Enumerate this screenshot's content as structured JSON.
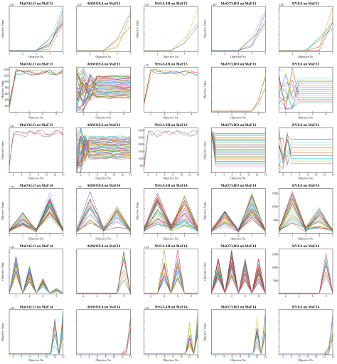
{
  "figure": {
    "colors": [
      "#0072BD",
      "#D95319",
      "#EDB120",
      "#7E2F8E",
      "#77AC30",
      "#4DBEEE",
      "#A2142F",
      "#1f77b4",
      "#ff7f0e",
      "#2ca02c",
      "#d62728",
      "#9467bd",
      "#8c564b",
      "#e377c2",
      "#7f7f7f",
      "#bcbd22",
      "#17becf"
    ]
  },
  "chart_data": [
    {
      "type": "line",
      "title": "MaOALO on MaF13",
      "xlabel": "Objective No.",
      "ylabel": "Objective Value",
      "multiplier": "×10⁷",
      "xticks": [
        "1",
        "2",
        "3",
        "4",
        "5"
      ],
      "yticks": [
        "",
        "",
        "",
        "",
        ""
      ],
      "xlim": [
        1,
        5
      ],
      "ylim": [
        0,
        1
      ],
      "pattern": "spike",
      "lines": 8,
      "seed": 11
    },
    {
      "type": "line",
      "title": "ARMOEA on MaF13",
      "xlabel": "Objective No.",
      "ylabel": "",
      "multiplier": "×10⁷",
      "xticks": [
        "1",
        "2",
        "3",
        "4",
        "5"
      ],
      "yticks": [
        "",
        "",
        "",
        "",
        ""
      ],
      "xlim": [
        1,
        5
      ],
      "ylim": [
        0,
        1
      ],
      "pattern": "spike",
      "lines": 4,
      "seed": 12
    },
    {
      "type": "line",
      "title": "NSGA-III on MaF13",
      "xlabel": "Objective No.",
      "ylabel": "Objective Value",
      "multiplier": "×10⁵",
      "xticks": [
        "1",
        "2",
        "3",
        "4",
        "5"
      ],
      "yticks": [
        "",
        "",
        "",
        "",
        ""
      ],
      "xlim": [
        1,
        5
      ],
      "ylim": [
        0,
        1
      ],
      "pattern": "spike",
      "lines": 3,
      "seed": 13
    },
    {
      "type": "line",
      "title": "MaOTLBO on MaF13",
      "xlabel": "Objective No.",
      "ylabel": "Objective Value",
      "multiplier": "×10⁴",
      "xticks": [
        "1",
        "2",
        "3",
        "4",
        "5"
      ],
      "yticks": [
        "",
        "",
        "",
        "",
        ""
      ],
      "xlim": [
        1,
        5
      ],
      "ylim": [
        0,
        1
      ],
      "pattern": "spike",
      "lines": 5,
      "seed": 14
    },
    {
      "type": "line",
      "title": "RVEA on MaF13",
      "xlabel": "Objective No.",
      "ylabel": "",
      "multiplier": "×10⁸",
      "xticks": [
        "1",
        "2",
        "3",
        "4",
        "5"
      ],
      "yticks": [
        "",
        "",
        "",
        "",
        ""
      ],
      "xlim": [
        1,
        5
      ],
      "ylim": [
        0,
        1
      ],
      "pattern": "spike",
      "lines": 6,
      "seed": 15
    },
    {
      "type": "line",
      "title": "MaOALO on MaF13",
      "xlabel": "Objective No.",
      "ylabel": "Objective Value",
      "multiplier": "",
      "xticks": [
        "2",
        "4",
        "6",
        "8"
      ],
      "yticks": [
        "200",
        "400",
        "600",
        "800",
        "1000",
        "1200",
        "1400"
      ],
      "xlim": [
        1,
        9
      ],
      "ylim": [
        0,
        1
      ],
      "pattern": "plateau",
      "lines": 6,
      "seed": 21
    },
    {
      "type": "line",
      "title": "ARMOEA on MaF13",
      "xlabel": "Objective No.",
      "ylabel": "",
      "multiplier": "",
      "xticks": [
        "2",
        "4",
        "6",
        "8"
      ],
      "yticks": [
        "",
        "",
        "",
        "",
        ""
      ],
      "xlim": [
        1,
        9
      ],
      "ylim": [
        0,
        1
      ],
      "pattern": "band",
      "lines": 40,
      "seed": 22
    },
    {
      "type": "line",
      "title": "NSGA-III on MaF13",
      "xlabel": "Objective No.",
      "ylabel": "",
      "multiplier": "×10⁵",
      "xticks": [
        "2",
        "4",
        "6",
        "8"
      ],
      "yticks": [
        "",
        "",
        "",
        "",
        ""
      ],
      "xlim": [
        1,
        9
      ],
      "ylim": [
        0,
        1
      ],
      "pattern": "plateau",
      "lines": 4,
      "seed": 23
    },
    {
      "type": "line",
      "title": "MaOTLBO on MaF13",
      "xlabel": "Objective No.",
      "ylabel": "Objective Value",
      "multiplier": "",
      "xticks": [
        "2",
        "4",
        "6",
        "8"
      ],
      "yticks": [
        "",
        "",
        "",
        "",
        ""
      ],
      "xlim": [
        1,
        9
      ],
      "ylim": [
        0,
        1
      ],
      "pattern": "spike",
      "lines": 3,
      "seed": 24
    },
    {
      "type": "line",
      "title": "RVEA on MaF13",
      "xlabel": "Objective No.",
      "ylabel": "",
      "multiplier": "",
      "xticks": [
        "2",
        "4",
        "6",
        "8"
      ],
      "yticks": [
        "",
        "",
        "",
        "",
        ""
      ],
      "xlim": [
        1,
        9
      ],
      "ylim": [
        0,
        1
      ],
      "pattern": "cross",
      "lines": 14,
      "seed": 25
    },
    {
      "type": "line",
      "title": "MaOALO on MaF13",
      "xlabel": "Objective No.",
      "ylabel": "Objective Value",
      "multiplier": "×10⁷",
      "xticks": [
        "2",
        "4",
        "6",
        "8",
        "10",
        "12",
        "14"
      ],
      "yticks": [
        "",
        "",
        "",
        "",
        ""
      ],
      "xlim": [
        1,
        14
      ],
      "ylim": [
        0,
        1
      ],
      "pattern": "plateau",
      "lines": 3,
      "seed": 31
    },
    {
      "type": "line",
      "title": "ARMOEA on MaF13",
      "xlabel": "Objective No.",
      "ylabel": "",
      "multiplier": "",
      "xticks": [
        "2",
        "4",
        "6",
        "8",
        "10",
        "12",
        "14"
      ],
      "yticks": [
        "",
        "",
        "",
        "",
        ""
      ],
      "xlim": [
        1,
        14
      ],
      "ylim": [
        0,
        1
      ],
      "pattern": "band",
      "lines": 40,
      "seed": 32
    },
    {
      "type": "line",
      "title": "NSGA-III on MaF13",
      "xlabel": "Objective No.",
      "ylabel": "",
      "multiplier": "",
      "xticks": [
        "2",
        "4",
        "6",
        "8",
        "10",
        "12",
        "14"
      ],
      "yticks": [
        "500",
        "1000",
        "1500",
        "2000",
        "2500",
        "3000"
      ],
      "xlim": [
        1,
        14
      ],
      "ylim": [
        0,
        1
      ],
      "pattern": "plateau",
      "lines": 3,
      "seed": 33
    },
    {
      "type": "line",
      "title": "MaOTLBO on MaF13",
      "xlabel": "Objective No.",
      "ylabel": "Objective Value",
      "multiplier": "",
      "xticks": [
        "2",
        "4",
        "6",
        "8",
        "10",
        "12",
        "14"
      ],
      "yticks": [
        "",
        "",
        "",
        "",
        ""
      ],
      "xlim": [
        1,
        14
      ],
      "ylim": [
        0,
        1
      ],
      "pattern": "flat",
      "lines": 28,
      "seed": 34
    },
    {
      "type": "line",
      "title": "RVEA on MaF13",
      "xlabel": "Objective No.",
      "ylabel": "",
      "multiplier": "",
      "xticks": [
        "2",
        "4",
        "6",
        "8",
        "10",
        "12",
        "14"
      ],
      "yticks": [
        "",
        "",
        "",
        "",
        ""
      ],
      "xlim": [
        1,
        14
      ],
      "ylim": [
        0,
        1
      ],
      "pattern": "cross",
      "lines": 10,
      "seed": 35
    },
    {
      "type": "line",
      "title": "MaOALO on MaF14",
      "xlabel": "Objective No.",
      "ylabel": "Objective Value",
      "multiplier": "×10⁴",
      "xticks": [
        "1",
        "2",
        "3",
        "4",
        "5"
      ],
      "yticks": [
        "",
        "",
        "",
        "",
        ""
      ],
      "xlim": [
        1,
        5
      ],
      "ylim": [
        0,
        1
      ],
      "pattern": "zigzag5",
      "lines": 30,
      "seed": 41
    },
    {
      "type": "line",
      "title": "ARMOEA on MaF14",
      "xlabel": "Objective No.",
      "ylabel": "",
      "multiplier": "×10⁵",
      "xticks": [
        "1",
        "2",
        "3",
        "4",
        "5"
      ],
      "yticks": [
        "",
        "",
        "",
        "",
        ""
      ],
      "xlim": [
        1,
        5
      ],
      "ylim": [
        0,
        1
      ],
      "pattern": "zigzag5b",
      "lines": 20,
      "seed": 42
    },
    {
      "type": "line",
      "title": "NSGA-III on MaF14",
      "xlabel": "Objective No.",
      "ylabel": "Objective Value",
      "multiplier": "",
      "xticks": [
        "1",
        "2",
        "3",
        "4",
        "5"
      ],
      "yticks": [
        "",
        "",
        "",
        "",
        ""
      ],
      "xlim": [
        1,
        5
      ],
      "ylim": [
        0,
        1
      ],
      "pattern": "zigzag5c",
      "lines": 30,
      "seed": 43
    },
    {
      "type": "line",
      "title": "MaOTLBO on MaF14",
      "xlabel": "Objective No.",
      "ylabel": "Objective Value",
      "multiplier": "",
      "xticks": [
        "1",
        "2",
        "3",
        "4",
        "5"
      ],
      "yticks": [
        "",
        "",
        "",
        "",
        ""
      ],
      "xlim": [
        1,
        5
      ],
      "ylim": [
        0,
        1
      ],
      "pattern": "zigzag5",
      "lines": 30,
      "seed": 44
    },
    {
      "type": "line",
      "title": "RVEA on MaF14",
      "xlabel": "Objective No.",
      "ylabel": "",
      "multiplier": "",
      "xticks": [
        "1",
        "2",
        "3",
        "4",
        "5"
      ],
      "yticks": [
        "5000",
        "10000",
        "15000"
      ],
      "xlim": [
        1,
        5
      ],
      "ylim": [
        0,
        1
      ],
      "pattern": "zigzag5b",
      "lines": 25,
      "seed": 45
    },
    {
      "type": "line",
      "title": "MaOALO on MaF14",
      "xlabel": "",
      "ylabel": "Objective Value",
      "multiplier": "×10⁴",
      "xticks": [
        "2",
        "4",
        "6",
        "8"
      ],
      "yticks": [
        "",
        "",
        "",
        "",
        ""
      ],
      "xlim": [
        1,
        9
      ],
      "ylim": [
        0,
        1
      ],
      "pattern": "peaks9",
      "lines": 20,
      "seed": 51
    },
    {
      "type": "line",
      "title": "ARMOEA on MaF14",
      "xlabel": "",
      "ylabel": "",
      "multiplier": "",
      "xticks": [
        "2",
        "4",
        "6",
        "8"
      ],
      "yticks": [
        "",
        "",
        "",
        "",
        ""
      ],
      "xlim": [
        1,
        9
      ],
      "ylim": [
        0,
        1
      ],
      "pattern": "late9",
      "lines": 8,
      "seed": 52
    },
    {
      "type": "line",
      "title": "NSGA-III on MaF14",
      "xlabel": "",
      "ylabel": "",
      "multiplier": "×10⁴",
      "xticks": [
        "2",
        "4",
        "6",
        "8"
      ],
      "yticks": [
        "",
        "",
        "",
        "",
        ""
      ],
      "xlim": [
        1,
        9
      ],
      "ylim": [
        0,
        1
      ],
      "pattern": "mid9",
      "lines": 15,
      "seed": 53
    },
    {
      "type": "line",
      "title": "MaOTLBO on MaF14",
      "xlabel": "",
      "ylabel": "Objective Value",
      "multiplier": "",
      "xticks": [
        "2",
        "4",
        "6",
        "8"
      ],
      "yticks": [
        "",
        "",
        "",
        "",
        ""
      ],
      "xlim": [
        1,
        9
      ],
      "ylim": [
        0,
        1
      ],
      "pattern": "peaks9b",
      "lines": 25,
      "seed": 54
    },
    {
      "type": "line",
      "title": "RVEA on MaF14",
      "xlabel": "",
      "ylabel": "",
      "multiplier": "",
      "xticks": [
        "2",
        "4",
        "6",
        "8"
      ],
      "yticks": [
        "5000",
        "10000",
        "15000"
      ],
      "xlim": [
        1,
        9
      ],
      "ylim": [
        0,
        1
      ],
      "pattern": "late9",
      "lines": 8,
      "seed": 55
    },
    {
      "type": "line",
      "title": "MaOALO on MaF14",
      "xlabel": "Objective No.",
      "ylabel": "Objective Value",
      "multiplier": "×10⁴",
      "xticks": [
        "2",
        "4",
        "6",
        "8",
        "10",
        "12",
        "14"
      ],
      "yticks": [
        "",
        "",
        "",
        "",
        ""
      ],
      "xlim": [
        1,
        14
      ],
      "ylim": [
        0,
        1
      ],
      "pattern": "late14",
      "lines": 10,
      "seed": 61
    },
    {
      "type": "line",
      "title": "ARMOEA on MaF14",
      "xlabel": "Objective No.",
      "ylabel": "",
      "multiplier": "",
      "xticks": [
        "2",
        "4",
        "6",
        "8",
        "10",
        "12",
        "14"
      ],
      "yticks": [
        "",
        "",
        "",
        "",
        ""
      ],
      "xlim": [
        1,
        14
      ],
      "ylim": [
        0,
        1
      ],
      "pattern": "edge14",
      "lines": 5,
      "seed": 62
    },
    {
      "type": "line",
      "title": "NSGA-III on MaF14",
      "xlabel": "Objective No.",
      "ylabel": "",
      "multiplier": "×10⁴",
      "xticks": [
        "2",
        "4",
        "6",
        "8",
        "10",
        "12",
        "14"
      ],
      "yticks": [
        "",
        "",
        "",
        "",
        ""
      ],
      "xlim": [
        1,
        14
      ],
      "ylim": [
        0,
        1
      ],
      "pattern": "late14",
      "lines": 12,
      "seed": 63
    },
    {
      "type": "line",
      "title": "MaOTLBO on MaF14",
      "xlabel": "Objective No.",
      "ylabel": "Objective Value",
      "multiplier": "",
      "xticks": [
        "2",
        "4",
        "6",
        "8",
        "10",
        "12",
        "14"
      ],
      "yticks": [
        "",
        "",
        "",
        "",
        ""
      ],
      "xlim": [
        1,
        14
      ],
      "ylim": [
        0,
        1
      ],
      "pattern": "late14",
      "lines": 12,
      "seed": 64
    },
    {
      "type": "line",
      "title": "RVEA on MaF14",
      "xlabel": "Objective No.",
      "ylabel": "",
      "multiplier": "",
      "xticks": [
        "2",
        "4",
        "6",
        "8",
        "10",
        "12",
        "14"
      ],
      "yticks": [
        "",
        "",
        "",
        "",
        ""
      ],
      "xlim": [
        1,
        14
      ],
      "ylim": [
        0,
        1
      ],
      "pattern": "edge14",
      "lines": 8,
      "seed": 65
    }
  ]
}
